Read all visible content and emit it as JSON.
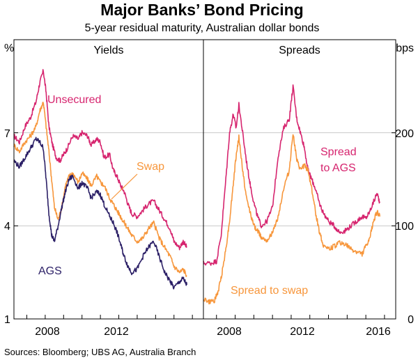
{
  "chart_data": {
    "type": "line",
    "title": "Major Banks’ Bond Pricing",
    "subtitle": "5-year residual maturity, Australian dollar bonds",
    "source": "Sources:   Bloomberg; UBS AG, Australia Branch",
    "colors": {
      "unsecured": "#d6246e",
      "swap": "#f7963b",
      "ags": "#2b1f66",
      "grid": "#c8c8c8",
      "axis": "#000000"
    },
    "x_axis": {
      "xlim": [
        2006.3,
        2016.6
      ],
      "tick_labels": [
        "2008",
        "2012",
        "2016"
      ],
      "tick_values": [
        2008,
        2012,
        2016
      ]
    },
    "panels": [
      {
        "title": "Yields",
        "unit": "%",
        "ylim": [
          1,
          10
        ],
        "ytick_values": [
          1,
          4,
          7
        ],
        "ytick_labels": [
          "1",
          "4",
          "7"
        ],
        "annotations": {
          "unsecured": "Unsecured",
          "swap": "Swap",
          "ags": "AGS"
        },
        "series": [
          {
            "name": "Unsecured",
            "color": "#d6246e",
            "x": [
              2006.3,
              2006.6,
              2006.9,
              2007.2,
              2007.5,
              2007.7,
              2007.9,
              2008.05,
              2008.2,
              2008.4,
              2008.6,
              2008.8,
              2009.0,
              2009.2,
              2009.5,
              2009.8,
              2010.0,
              2010.3,
              2010.5,
              2010.8,
              2011.0,
              2011.2,
              2011.5,
              2011.7,
              2011.9,
              2012.1,
              2012.3,
              2012.5,
              2012.7,
              2013.0,
              2013.3,
              2013.6,
              2013.9,
              2014.2,
              2014.5,
              2014.8,
              2015.0,
              2015.3,
              2015.5,
              2015.7
            ],
            "values": [
              6.9,
              6.7,
              7.2,
              7.5,
              8.0,
              8.6,
              9.0,
              8.3,
              7.2,
              6.6,
              6.2,
              6.1,
              6.3,
              6.5,
              6.9,
              6.8,
              7.0,
              6.9,
              6.6,
              6.8,
              6.7,
              6.2,
              6.3,
              5.8,
              5.6,
              5.3,
              5.1,
              4.7,
              4.4,
              4.3,
              4.5,
              4.7,
              4.8,
              4.5,
              4.2,
              3.9,
              3.5,
              3.3,
              3.5,
              3.3
            ]
          },
          {
            "name": "Swap",
            "color": "#f7963b",
            "x": [
              2006.3,
              2006.6,
              2006.9,
              2007.2,
              2007.5,
              2007.7,
              2007.9,
              2008.05,
              2008.2,
              2008.35,
              2008.5,
              2008.7,
              2008.9,
              2009.1,
              2009.3,
              2009.5,
              2009.8,
              2010.0,
              2010.3,
              2010.5,
              2010.8,
              2011.0,
              2011.2,
              2011.5,
              2011.7,
              2011.9,
              2012.1,
              2012.3,
              2012.5,
              2012.7,
              2013.0,
              2013.3,
              2013.6,
              2013.9,
              2014.2,
              2014.5,
              2014.8,
              2015.0,
              2015.3,
              2015.5,
              2015.7
            ],
            "values": [
              6.6,
              6.4,
              6.7,
              6.9,
              7.2,
              7.7,
              8.0,
              7.2,
              6.4,
              5.5,
              4.6,
              4.2,
              4.6,
              5.3,
              5.6,
              5.7,
              5.4,
              5.7,
              5.5,
              5.3,
              5.6,
              5.4,
              5.3,
              4.9,
              4.7,
              4.5,
              4.3,
              4.1,
              3.9,
              3.7,
              3.5,
              3.6,
              3.9,
              4.1,
              3.6,
              3.3,
              3.0,
              2.7,
              2.5,
              2.6,
              2.4
            ]
          },
          {
            "name": "AGS",
            "color": "#2b1f66",
            "x": [
              2006.3,
              2006.6,
              2006.9,
              2007.2,
              2007.5,
              2007.7,
              2007.9,
              2008.05,
              2008.2,
              2008.35,
              2008.5,
              2008.7,
              2008.9,
              2009.1,
              2009.3,
              2009.5,
              2009.8,
              2010.0,
              2010.3,
              2010.5,
              2010.8,
              2011.0,
              2011.2,
              2011.5,
              2011.7,
              2011.9,
              2012.1,
              2012.3,
              2012.5,
              2012.7,
              2013.0,
              2013.3,
              2013.6,
              2013.9,
              2014.2,
              2014.5,
              2014.8,
              2015.0,
              2015.3,
              2015.5,
              2015.7
            ],
            "values": [
              6.1,
              5.9,
              6.2,
              6.5,
              6.8,
              6.7,
              6.5,
              5.5,
              4.4,
              3.7,
              3.5,
              4.0,
              4.6,
              5.1,
              5.5,
              5.6,
              5.2,
              5.4,
              5.2,
              4.9,
              5.1,
              5.0,
              4.7,
              4.3,
              4.1,
              3.8,
              3.4,
              3.0,
              2.7,
              2.5,
              2.6,
              3.0,
              3.3,
              3.5,
              3.0,
              2.5,
              2.2,
              2.0,
              2.2,
              2.3,
              2.1
            ]
          }
        ]
      },
      {
        "title": "Spreads",
        "unit": "bps",
        "ylim": [
          0,
          300
        ],
        "ytick_values": [
          0,
          100,
          200
        ],
        "ytick_labels": [
          "0",
          "100",
          "200"
        ],
        "annotations": {
          "spread_to_ags_line1": "Spread",
          "spread_to_ags_line2": "to AGS",
          "spread_to_swap": "Spread to swap"
        },
        "series": [
          {
            "name": "Spread to AGS",
            "color": "#d6246e",
            "x": [
              2006.3,
              2006.7,
              2007.0,
              2007.25,
              2007.5,
              2007.7,
              2007.9,
              2008.05,
              2008.2,
              2008.4,
              2008.6,
              2008.8,
              2009.0,
              2009.2,
              2009.4,
              2009.7,
              2010.0,
              2010.3,
              2010.6,
              2010.9,
              2011.1,
              2011.3,
              2011.5,
              2011.7,
              2011.9,
              2012.1,
              2012.3,
              2012.5,
              2012.7,
              2013.0,
              2013.3,
              2013.6,
              2013.9,
              2014.2,
              2014.5,
              2014.8,
              2015.0,
              2015.2,
              2015.4,
              2015.6,
              2015.75
            ],
            "values": [
              60,
              60,
              62,
              90,
              150,
              200,
              220,
              205,
              230,
              200,
              170,
              145,
              125,
              110,
              100,
              105,
              120,
              175,
              205,
              215,
              250,
              215,
              200,
              185,
              160,
              150,
              140,
              125,
              115,
              105,
              100,
              93,
              95,
              100,
              105,
              110,
              108,
              115,
              125,
              135,
              125
            ]
          },
          {
            "name": "Spread to swap",
            "color": "#f7963b",
            "x": [
              2006.3,
              2006.6,
              2006.9,
              2007.1,
              2007.3,
              2007.5,
              2007.7,
              2007.9,
              2008.05,
              2008.2,
              2008.4,
              2008.6,
              2008.8,
              2009.0,
              2009.2,
              2009.4,
              2009.7,
              2010.0,
              2010.3,
              2010.6,
              2010.9,
              2011.1,
              2011.3,
              2011.5,
              2011.7,
              2011.9,
              2012.1,
              2012.3,
              2012.5,
              2012.7,
              2013.0,
              2013.3,
              2013.6,
              2013.9,
              2014.2,
              2014.5,
              2014.8,
              2015.0,
              2015.2,
              2015.4,
              2015.6,
              2015.75
            ],
            "values": [
              22,
              18,
              20,
              30,
              50,
              75,
              105,
              145,
              175,
              195,
              160,
              130,
              115,
              100,
              95,
              88,
              85,
              92,
              110,
              140,
              160,
              200,
              170,
              160,
              165,
              160,
              140,
              115,
              95,
              80,
              75,
              78,
              82,
              80,
              75,
              72,
              70,
              78,
              85,
              105,
              115,
              110
            ]
          }
        ]
      }
    ]
  }
}
